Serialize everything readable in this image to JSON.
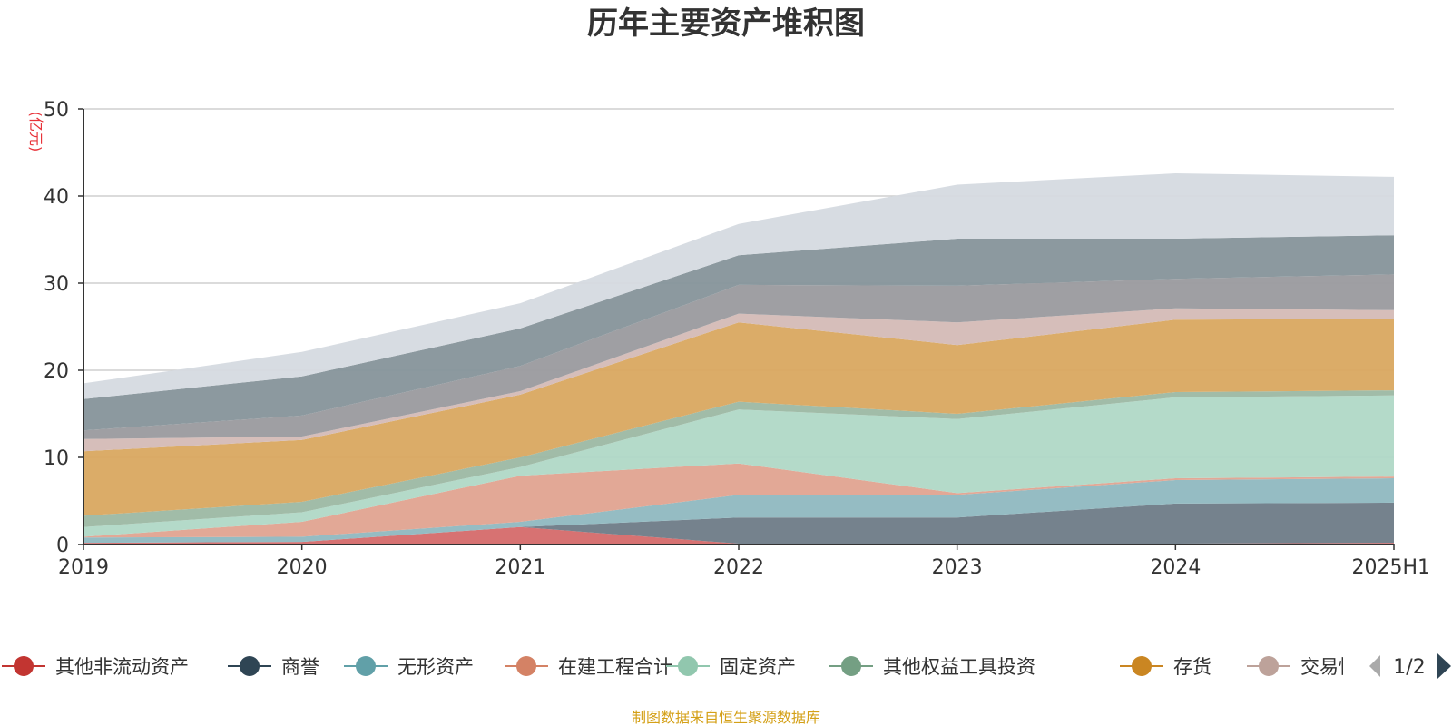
{
  "chart_data": {
    "type": "area",
    "stacked": true,
    "title": "历年主要资产堆积图",
    "unit_label": "(亿元)",
    "categories": [
      "2019",
      "2020",
      "2021",
      "2022",
      "2023",
      "2024",
      "2025H1"
    ],
    "y_ticks": [
      "0",
      "10",
      "20",
      "30",
      "40",
      "50"
    ],
    "ylim": [
      0,
      50
    ],
    "grid": true,
    "legend_position": "bottom",
    "legend": {
      "visible_items": [
        "其他非流动资产",
        "商誉",
        "无形资产",
        "在建工程合计",
        "固定资产",
        "其他权益工具投资",
        "存货",
        "交易性"
      ],
      "page": "1/2"
    },
    "series": [
      {
        "name": "其他非流动资产",
        "color": "#d56a6a",
        "values": [
          0.2,
          0.3,
          2.0,
          0.1,
          0.1,
          0.1,
          0.2
        ]
      },
      {
        "name": "商誉",
        "values": [
          0.0,
          0.0,
          0.0,
          3.0,
          3.0,
          4.6,
          4.6
        ]
      },
      {
        "name": "无形资产",
        "values": [
          0.6,
          0.6,
          0.6,
          2.6,
          2.6,
          2.7,
          2.8
        ]
      },
      {
        "name": "在建工程合计",
        "values": [
          0.1,
          1.7,
          5.3,
          3.6,
          0.2,
          0.2,
          0.2
        ]
      },
      {
        "name": "固定资产",
        "values": [
          1.1,
          1.1,
          1.0,
          6.2,
          8.5,
          9.3,
          9.3
        ]
      },
      {
        "name": "其他权益工具投资",
        "values": [
          1.3,
          1.2,
          1.1,
          0.9,
          0.6,
          0.6,
          0.6
        ]
      },
      {
        "name": "存货",
        "values": [
          7.4,
          7.1,
          7.2,
          9.1,
          7.9,
          8.3,
          8.2
        ]
      },
      {
        "name": "交易性",
        "values": [
          1.4,
          0.4,
          0.4,
          1.0,
          2.6,
          1.3,
          1.0
        ]
      },
      {
        "values": [
          1.0,
          2.4,
          2.9,
          3.3,
          4.2,
          3.4,
          4.1
        ]
      },
      {
        "values": [
          3.6,
          4.5,
          4.3,
          3.4,
          5.4,
          4.6,
          4.5
        ]
      },
      {
        "values": [
          1.8,
          2.8,
          2.9,
          3.6,
          6.2,
          7.5,
          6.7
        ]
      }
    ],
    "colors": [
      "#d56a6a",
      "#6e7b87",
      "#8fb8c0",
      "#e0a390",
      "#b0d8c6",
      "#9cb8a3",
      "#d9a860",
      "#d4bab6",
      "#9a9a9e",
      "#86939a",
      "#d5dae0"
    ],
    "legend_marker_colors": [
      "#c23531",
      "#2f4554",
      "#61a0a8",
      "#d48265",
      "#91c7ae",
      "#749f83",
      "#ca8622",
      "#bda29a"
    ]
  },
  "footer": {
    "source": "制图数据来自恒生聚源数据库"
  }
}
